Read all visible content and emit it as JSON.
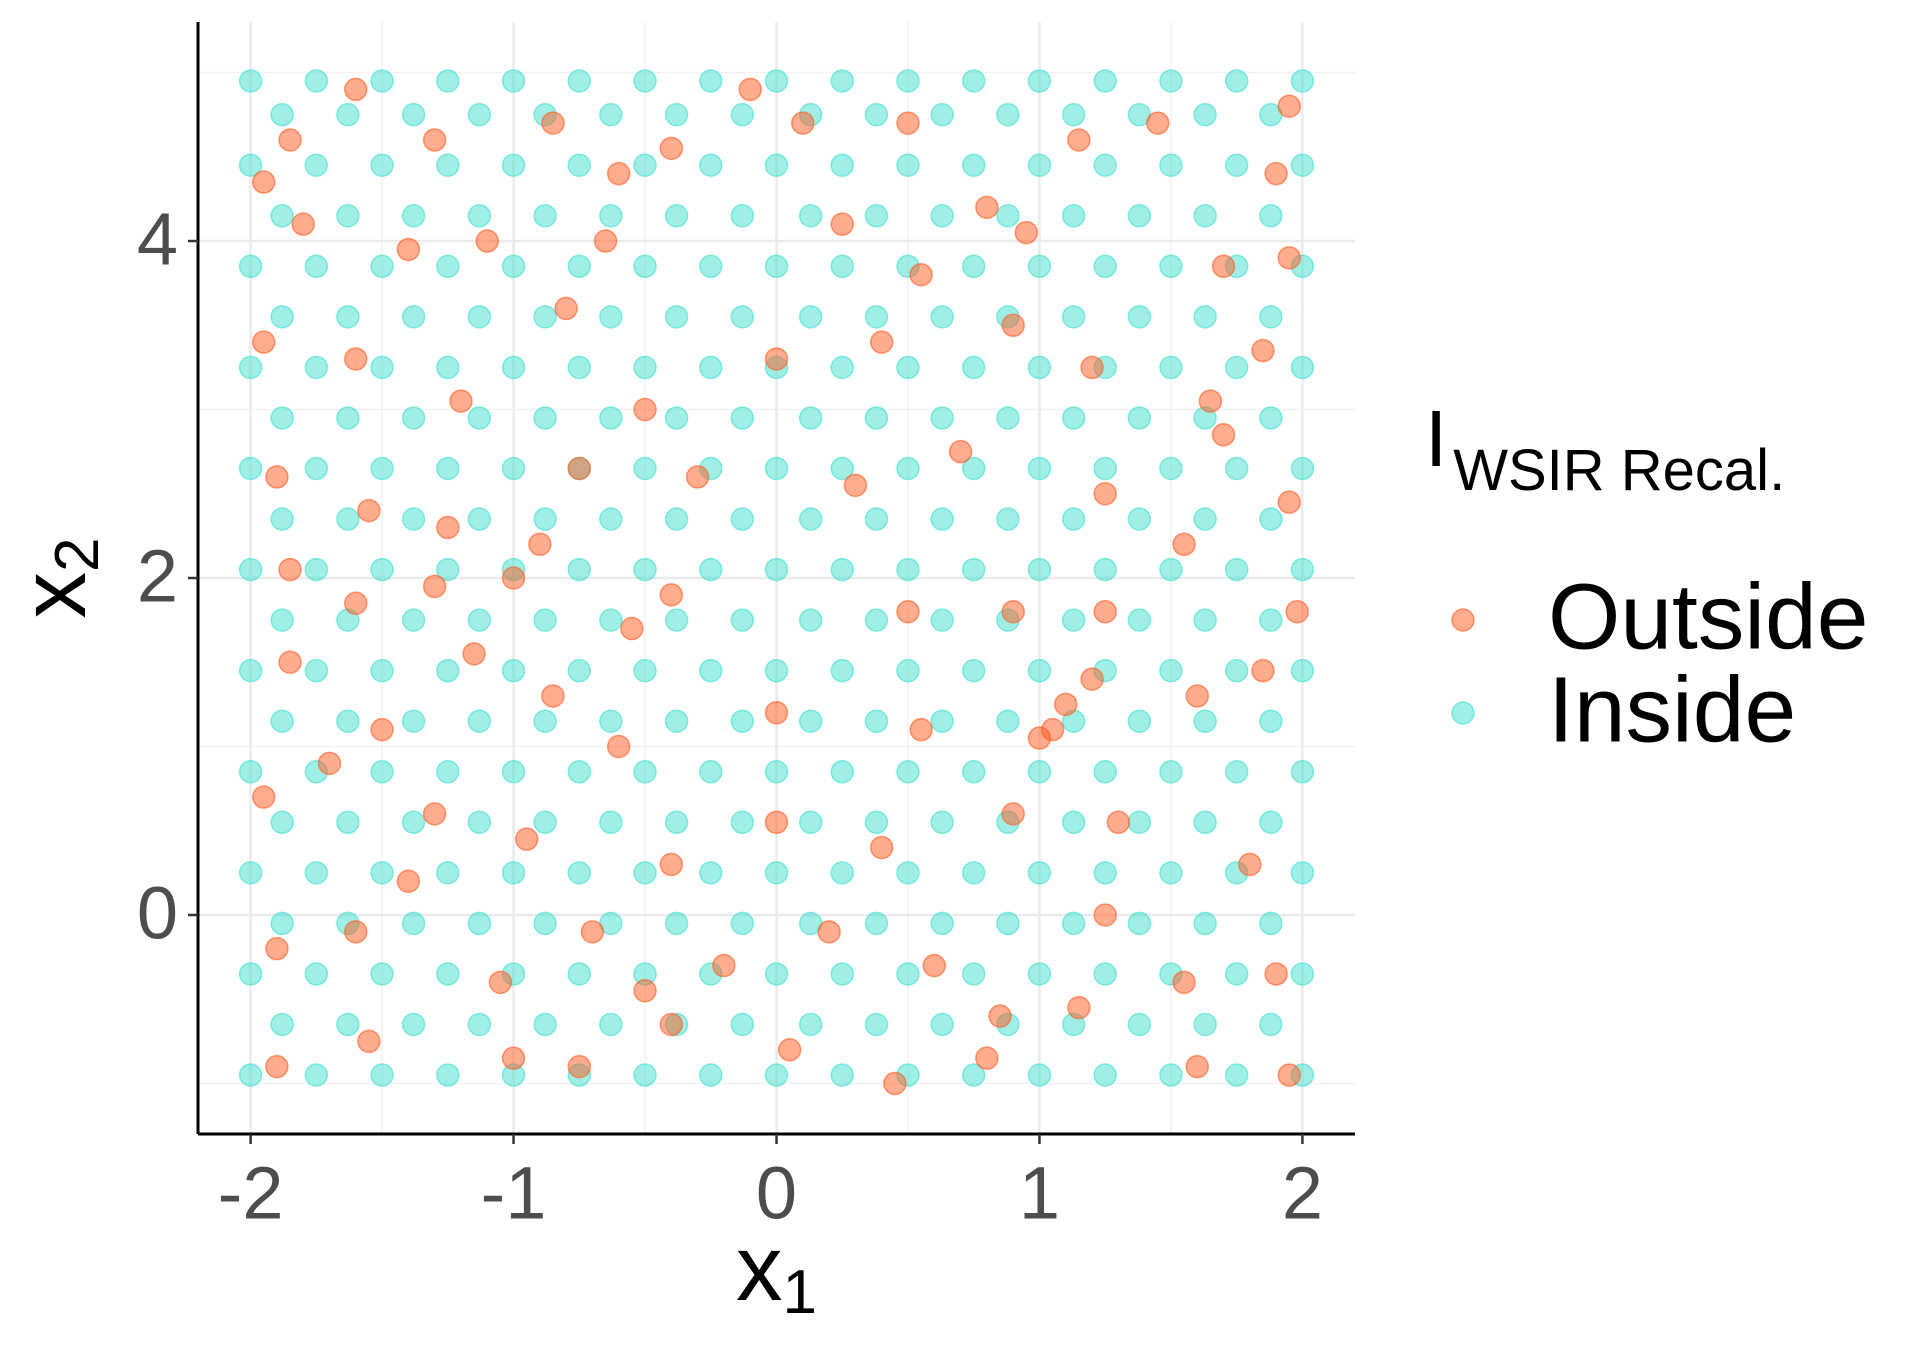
{
  "chart_data": {
    "type": "scatter",
    "x_label": "x",
    "x_label_sub": "1",
    "y_label": "x",
    "y_label_sub": "2",
    "legend_title": "I",
    "legend_title_sub": "WSIR Recal.",
    "legend_position": "right",
    "xlim": [
      -2.2,
      2.2
    ],
    "ylim": [
      -1.3,
      5.3
    ],
    "xticks": [
      -2,
      -1,
      0,
      1,
      2
    ],
    "yticks": [
      0,
      2,
      4
    ],
    "x_minor_grid": [
      -1.5,
      -0.5,
      0.5,
      1.5
    ],
    "y_minor_grid": [
      -1,
      1,
      3,
      5
    ],
    "grid": true,
    "series": [
      {
        "name": "Outside",
        "color": "#ff5a1f",
        "x": [
          -1.95,
          -1.85,
          -1.6,
          -1.3,
          -1.1,
          -0.85,
          -0.6,
          -0.4,
          -0.1,
          0.1,
          0.5,
          0.8,
          1.15,
          1.45,
          1.9,
          1.95,
          -1.8,
          -1.4,
          -0.65,
          0.25,
          0.55,
          0.95,
          1.7,
          1.95,
          -1.95,
          -1.6,
          -1.2,
          -0.8,
          -0.5,
          0.0,
          0.4,
          0.9,
          1.2,
          1.65,
          1.85,
          -1.9,
          -1.55,
          -1.25,
          -0.9,
          -0.75,
          -0.3,
          0.3,
          0.7,
          1.25,
          1.7,
          1.95,
          -1.85,
          -1.6,
          -1.3,
          -1.0,
          -0.55,
          -0.4,
          0.5,
          0.9,
          1.2,
          1.25,
          1.55,
          1.98,
          -1.85,
          -1.5,
          -1.15,
          -0.85,
          -0.6,
          0.0,
          0.55,
          1.0,
          1.05,
          1.1,
          1.6,
          1.85,
          -1.95,
          -1.7,
          -1.3,
          -0.95,
          -0.4,
          0.0,
          0.4,
          0.9,
          1.3,
          1.8,
          -1.9,
          -1.6,
          -1.4,
          -1.05,
          -0.7,
          -0.5,
          -0.2,
          0.2,
          0.6,
          0.85,
          1.25,
          1.55,
          1.9,
          -1.9,
          -1.55,
          -1.0,
          -0.75,
          -0.4,
          0.05,
          0.45,
          0.8,
          1.15,
          1.6,
          1.95
        ],
        "values": [
          4.35,
          4.6,
          4.9,
          4.6,
          4.0,
          4.7,
          4.4,
          4.55,
          4.9,
          4.7,
          4.7,
          4.2,
          4.6,
          4.7,
          4.4,
          4.8,
          4.1,
          3.95,
          4.0,
          4.1,
          3.8,
          4.05,
          3.85,
          3.9,
          3.4,
          3.3,
          3.05,
          3.6,
          3.0,
          3.3,
          3.4,
          3.5,
          3.25,
          3.05,
          3.35,
          2.6,
          2.4,
          2.3,
          2.2,
          2.65,
          2.6,
          2.55,
          2.75,
          2.5,
          2.85,
          2.45,
          2.05,
          1.85,
          1.95,
          2.0,
          1.7,
          1.9,
          1.8,
          1.8,
          1.4,
          1.8,
          2.2,
          1.8,
          1.5,
          1.1,
          1.55,
          1.3,
          1.0,
          1.2,
          1.1,
          1.05,
          1.1,
          1.25,
          1.3,
          1.45,
          0.7,
          0.9,
          0.6,
          0.45,
          0.3,
          0.55,
          0.4,
          0.6,
          0.55,
          0.3,
          -0.2,
          -0.1,
          0.2,
          -0.4,
          -0.1,
          -0.45,
          -0.3,
          -0.1,
          -0.3,
          -0.6,
          0.0,
          -0.4,
          -0.35,
          -0.9,
          -0.75,
          -0.85,
          -0.9,
          -0.65,
          -0.8,
          -1.0,
          -0.85,
          -0.55,
          -0.9,
          -0.95
        ]
      },
      {
        "name": "Inside",
        "color": "#40e0d0",
        "x": [
          -2,
          -1.75,
          -1.5,
          -1.25,
          -1,
          -0.75,
          -0.5,
          -0.25,
          0,
          0.25,
          0.5,
          0.75,
          1,
          1.25,
          1.5,
          1.75,
          2,
          -1.88,
          -1.63,
          -1.38,
          -1.13,
          -0.88,
          -0.63,
          -0.38,
          -0.13,
          0.13,
          0.38,
          0.63,
          0.88,
          1.13,
          1.38,
          1.63,
          1.88,
          -2,
          -1.75,
          -1.5,
          -1.25,
          -1,
          -0.75,
          -0.5,
          -0.25,
          0,
          0.25,
          0.5,
          0.75,
          1,
          1.25,
          1.5,
          1.75,
          2,
          -1.88,
          -1.63,
          -1.38,
          -1.13,
          -0.88,
          -0.63,
          -0.38,
          -0.13,
          0.13,
          0.38,
          0.63,
          0.88,
          1.13,
          1.38,
          1.63,
          1.88,
          -2,
          -1.75,
          -1.5,
          -1.25,
          -1,
          -0.75,
          -0.5,
          -0.25,
          0,
          0.25,
          0.5,
          0.75,
          1,
          1.25,
          1.5,
          1.75,
          2,
          -1.88,
          -1.63,
          -1.38,
          -1.13,
          -0.88,
          -0.63,
          -0.38,
          -0.13,
          0.13,
          0.38,
          0.63,
          0.88,
          1.13,
          1.38,
          1.63,
          1.88,
          -2,
          -1.75,
          -1.5,
          -1.25,
          -1,
          -0.75,
          -0.5,
          -0.25,
          0,
          0.25,
          0.5,
          0.75,
          1,
          1.25,
          1.5,
          1.75,
          2,
          -1.88,
          -1.63,
          -1.38,
          -1.13,
          -0.88,
          -0.63,
          -0.38,
          -0.13,
          0.13,
          0.38,
          0.63,
          0.88,
          1.13,
          1.38,
          1.63,
          1.88,
          -2,
          -1.75,
          -1.5,
          -1.25,
          -1,
          -0.75,
          -0.5,
          -0.25,
          0,
          0.25,
          0.5,
          0.75,
          1,
          1.25,
          1.5,
          1.75,
          2,
          -1.88,
          -1.63,
          -1.38,
          -1.13,
          -0.88,
          -0.63,
          -0.38,
          -0.13,
          0.13,
          0.38,
          0.63,
          0.88,
          1.13,
          1.38,
          1.63,
          1.88,
          -2,
          -1.75,
          -1.5,
          -1.25,
          -1,
          -0.75,
          -0.5,
          -0.25,
          0,
          0.25,
          0.5,
          0.75,
          1,
          1.25,
          1.5,
          1.75,
          2,
          -1.88,
          -1.63,
          -1.38,
          -1.13,
          -0.88,
          -0.63,
          -0.38,
          -0.13,
          0.13,
          0.38,
          0.63,
          0.88,
          1.13,
          1.38,
          1.63,
          1.88,
          -2,
          -1.75,
          -1.5,
          -1.25,
          -1,
          -0.75,
          -0.5,
          -0.25,
          0,
          0.25,
          0.5,
          0.75,
          1,
          1.25,
          1.5,
          1.75,
          2,
          -1.88,
          -1.63,
          -1.38,
          -1.13,
          -0.88,
          -0.63,
          -0.38,
          -0.13,
          0.13,
          0.38,
          0.63,
          0.88,
          1.13,
          1.38,
          1.63,
          1.88,
          -2,
          -1.75,
          -1.5,
          -1.25,
          -1,
          -0.75,
          -0.5,
          -0.25,
          0,
          0.25,
          0.5,
          0.75,
          1,
          1.25,
          1.5,
          1.75,
          2,
          -1.88,
          -1.63,
          -1.38,
          -1.13,
          -0.88,
          -0.63,
          -0.38,
          -0.13,
          0.13,
          0.38,
          0.63,
          0.88,
          1.13,
          1.38,
          1.63,
          1.88,
          -2,
          -1.75,
          -1.5,
          -1.25,
          -1,
          -0.75,
          -0.5,
          -0.25,
          0,
          0.25,
          0.5,
          0.75,
          1,
          1.25,
          1.5,
          1.75,
          2,
          -1.88,
          -1.63,
          -1.38,
          -1.13,
          -0.88,
          -0.63,
          -0.38,
          -0.13,
          0.13,
          0.38,
          0.63,
          0.88,
          1.13,
          1.38,
          1.63,
          1.88,
          -2,
          -1.75,
          -1.5,
          -1.25,
          -1,
          -0.75,
          -0.5,
          -0.25,
          0,
          0.25,
          0.5,
          0.75,
          1,
          1.25,
          1.5,
          1.75,
          2,
          -1.88,
          -1.63,
          -1.38,
          -1.13,
          -0.88,
          -0.63,
          -0.38,
          -0.13,
          0.13,
          0.38,
          0.63,
          0.88,
          1.13,
          1.38,
          1.63,
          1.88,
          -2,
          -1.75,
          -1.5,
          -1.25,
          -1,
          -0.75,
          -0.5,
          -0.25,
          0,
          0.25,
          0.5,
          0.75,
          1,
          1.25,
          1.5,
          1.75,
          2
        ],
        "values": [
          -0.95,
          -0.95,
          -0.95,
          -0.95,
          -0.95,
          -0.95,
          -0.95,
          -0.95,
          -0.95,
          -0.95,
          -0.95,
          -0.95,
          -0.95,
          -0.95,
          -0.95,
          -0.95,
          -0.95,
          -0.65,
          -0.65,
          -0.65,
          -0.65,
          -0.65,
          -0.65,
          -0.65,
          -0.65,
          -0.65,
          -0.65,
          -0.65,
          -0.65,
          -0.65,
          -0.65,
          -0.65,
          -0.65,
          -0.35,
          -0.35,
          -0.35,
          -0.35,
          -0.35,
          -0.35,
          -0.35,
          -0.35,
          -0.35,
          -0.35,
          -0.35,
          -0.35,
          -0.35,
          -0.35,
          -0.35,
          -0.35,
          -0.35,
          -0.05,
          -0.05,
          -0.05,
          -0.05,
          -0.05,
          -0.05,
          -0.05,
          -0.05,
          -0.05,
          -0.05,
          -0.05,
          -0.05,
          -0.05,
          -0.05,
          -0.05,
          -0.05,
          0.25,
          0.25,
          0.25,
          0.25,
          0.25,
          0.25,
          0.25,
          0.25,
          0.25,
          0.25,
          0.25,
          0.25,
          0.25,
          0.25,
          0.25,
          0.25,
          0.25,
          0.55,
          0.55,
          0.55,
          0.55,
          0.55,
          0.55,
          0.55,
          0.55,
          0.55,
          0.55,
          0.55,
          0.55,
          0.55,
          0.55,
          0.55,
          0.55,
          0.85,
          0.85,
          0.85,
          0.85,
          0.85,
          0.85,
          0.85,
          0.85,
          0.85,
          0.85,
          0.85,
          0.85,
          0.85,
          0.85,
          0.85,
          0.85,
          0.85,
          1.15,
          1.15,
          1.15,
          1.15,
          1.15,
          1.15,
          1.15,
          1.15,
          1.15,
          1.15,
          1.15,
          1.15,
          1.15,
          1.15,
          1.15,
          1.15,
          1.45,
          1.45,
          1.45,
          1.45,
          1.45,
          1.45,
          1.45,
          1.45,
          1.45,
          1.45,
          1.45,
          1.45,
          1.45,
          1.45,
          1.45,
          1.45,
          1.45,
          1.75,
          1.75,
          1.75,
          1.75,
          1.75,
          1.75,
          1.75,
          1.75,
          1.75,
          1.75,
          1.75,
          1.75,
          1.75,
          1.75,
          1.75,
          1.75,
          2.05,
          2.05,
          2.05,
          2.05,
          2.05,
          2.05,
          2.05,
          2.05,
          2.05,
          2.05,
          2.05,
          2.05,
          2.05,
          2.05,
          2.05,
          2.05,
          2.05,
          2.35,
          2.35,
          2.35,
          2.35,
          2.35,
          2.35,
          2.35,
          2.35,
          2.35,
          2.35,
          2.35,
          2.35,
          2.35,
          2.35,
          2.35,
          2.35,
          2.65,
          2.65,
          2.65,
          2.65,
          2.65,
          2.65,
          2.65,
          2.65,
          2.65,
          2.65,
          2.65,
          2.65,
          2.65,
          2.65,
          2.65,
          2.65,
          2.65,
          2.95,
          2.95,
          2.95,
          2.95,
          2.95,
          2.95,
          2.95,
          2.95,
          2.95,
          2.95,
          2.95,
          2.95,
          2.95,
          2.95,
          2.95,
          2.95,
          3.25,
          3.25,
          3.25,
          3.25,
          3.25,
          3.25,
          3.25,
          3.25,
          3.25,
          3.25,
          3.25,
          3.25,
          3.25,
          3.25,
          3.25,
          3.25,
          3.25,
          3.55,
          3.55,
          3.55,
          3.55,
          3.55,
          3.55,
          3.55,
          3.55,
          3.55,
          3.55,
          3.55,
          3.55,
          3.55,
          3.55,
          3.55,
          3.55,
          3.85,
          3.85,
          3.85,
          3.85,
          3.85,
          3.85,
          3.85,
          3.85,
          3.85,
          3.85,
          3.85,
          3.85,
          3.85,
          3.85,
          3.85,
          3.85,
          3.85,
          4.15,
          4.15,
          4.15,
          4.15,
          4.15,
          4.15,
          4.15,
          4.15,
          4.15,
          4.15,
          4.15,
          4.15,
          4.15,
          4.15,
          4.15,
          4.15,
          4.45,
          4.45,
          4.45,
          4.45,
          4.45,
          4.45,
          4.45,
          4.45,
          4.45,
          4.45,
          4.45,
          4.45,
          4.45,
          4.45,
          4.45,
          4.45,
          4.45,
          4.75,
          4.75,
          4.75,
          4.75,
          4.75,
          4.75,
          4.75,
          4.75,
          4.75,
          4.75,
          4.75,
          4.75,
          4.75,
          4.75,
          4.75,
          4.75,
          4.95,
          4.95,
          4.95,
          4.95,
          4.95,
          4.95,
          4.95,
          4.95,
          4.95,
          4.95,
          4.95,
          4.95,
          4.95,
          4.95,
          4.95,
          4.95,
          4.95
        ]
      }
    ]
  }
}
